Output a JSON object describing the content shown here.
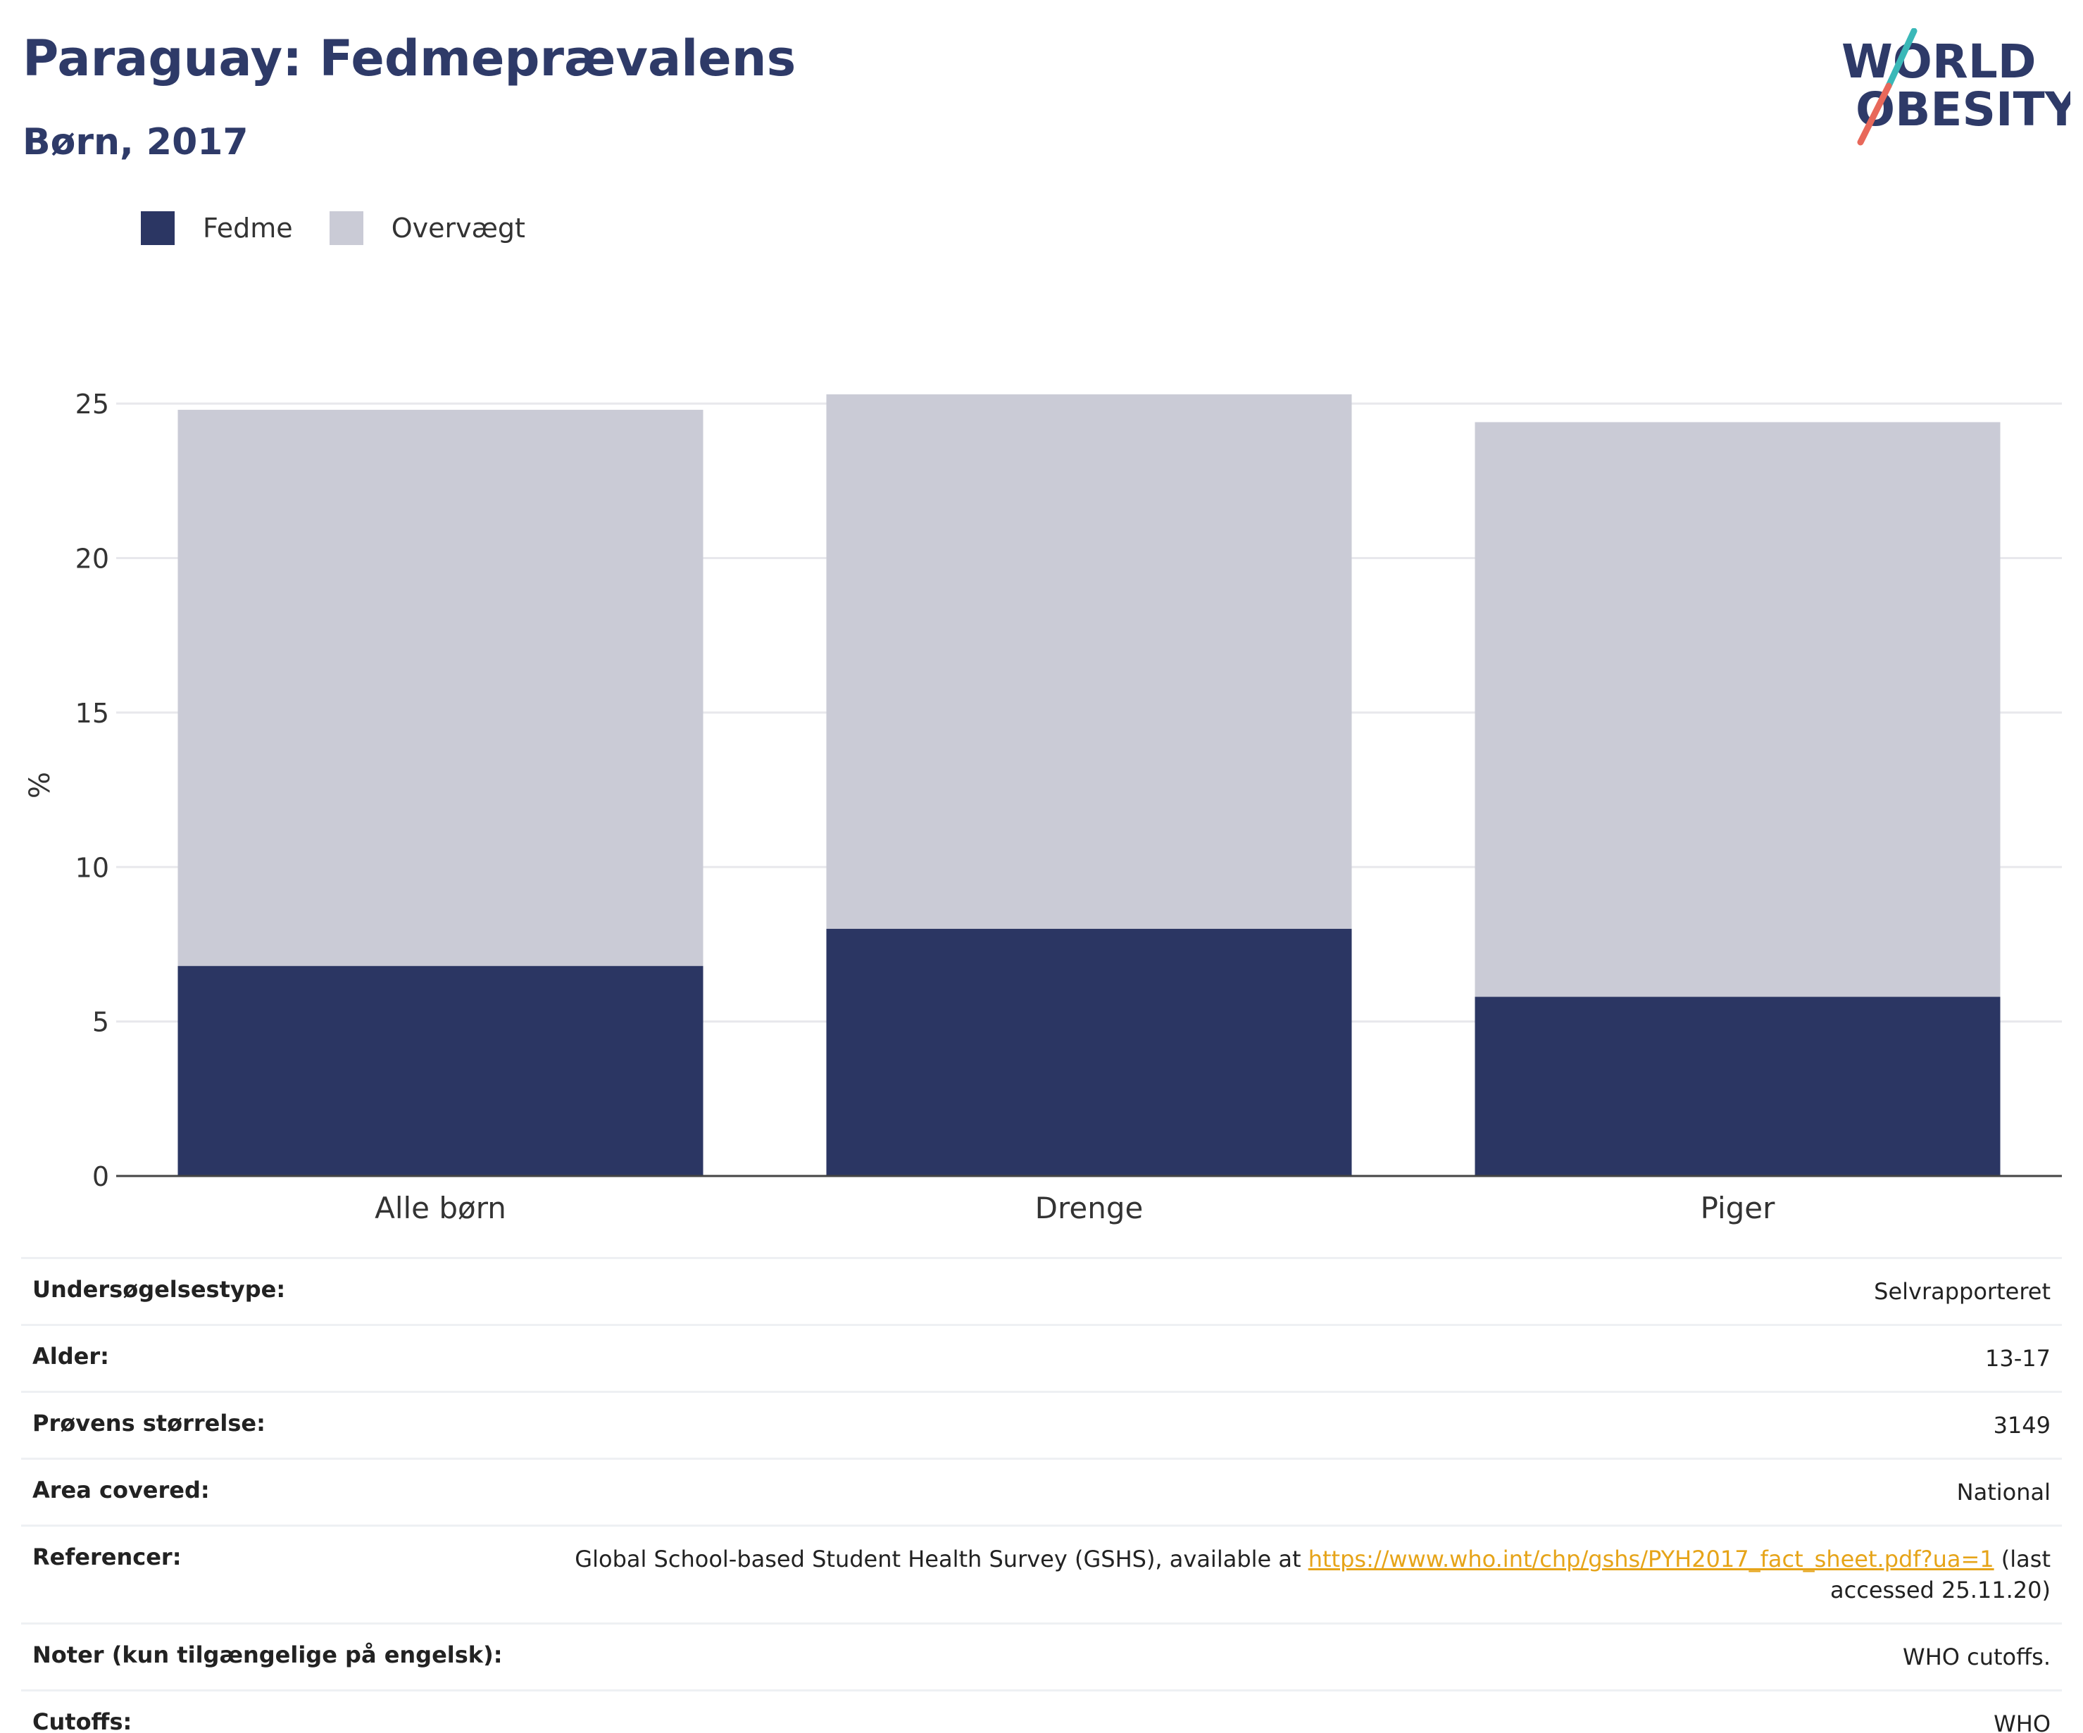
{
  "header": {
    "title": "Paraguay: Fedmeprævalens",
    "subtitle": "Børn, 2017"
  },
  "logo": {
    "line1": "WORLD",
    "line2": "OBESITY"
  },
  "colors": {
    "fedme": "#2b3663",
    "overvaegt": "#cacbd6",
    "link": "#e6a419",
    "logo_teal": "#3ab8b8",
    "logo_coral": "#e8685a"
  },
  "legend": [
    {
      "label": "Fedme",
      "color": "#2b3663"
    },
    {
      "label": "Overvægt",
      "color": "#cacbd6"
    }
  ],
  "chart_data": {
    "type": "bar",
    "stacked": true,
    "categories": [
      "Alle børn",
      "Drenge",
      "Piger"
    ],
    "series": [
      {
        "name": "Fedme",
        "values": [
          6.8,
          8.0,
          5.8
        ]
      },
      {
        "name": "Overvægt",
        "values": [
          18.0,
          17.3,
          18.6
        ]
      }
    ],
    "totals": [
      24.8,
      25.3,
      24.4
    ],
    "ylabel": "%",
    "yticks": [
      0,
      5,
      10,
      15,
      20,
      25
    ],
    "ylim": [
      0,
      25.3
    ],
    "grid": true,
    "legend_position": "top-left"
  },
  "info": {
    "survey_type": {
      "label": "Undersøgelsestype:",
      "value": "Selvrapporteret"
    },
    "age": {
      "label": "Alder:",
      "value": "13-17"
    },
    "sample_size": {
      "label": "Prøvens størrelse:",
      "value": "3149"
    },
    "area": {
      "label": "Area covered:",
      "value": "National"
    },
    "references": {
      "label": "Referencer:",
      "prefix": "Global School-based Student Health Survey (GSHS), available at ",
      "link": "https://www.who.int/chp/gshs/PYH2017_fact_sheet.pdf?ua=1",
      "suffix_line1": " (last",
      "suffix_line2": "accessed 25.11.20)"
    },
    "notes": {
      "label": "Noter (kun tilgængelige på engelsk):",
      "value": "WHO cutoffs."
    },
    "cutoffs": {
      "label": "Cutoffs:",
      "value": "WHO"
    }
  }
}
